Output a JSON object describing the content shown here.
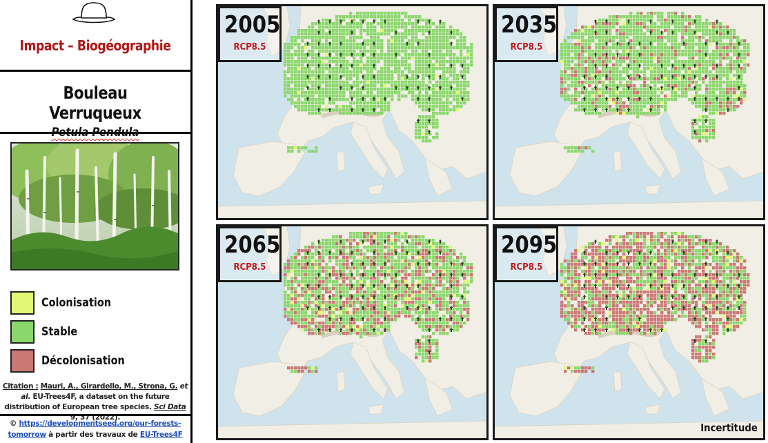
{
  "header": {
    "hat_icon": "hat-icon",
    "title": "Impact – Biogéographie"
  },
  "species": {
    "common_name": "Bouleau Verruqueux",
    "latin_name": "Petula Pendula"
  },
  "legend": [
    {
      "label": "Colonisation",
      "color": "#e2f774"
    },
    {
      "label": "Stable",
      "color": "#8ad86c"
    },
    {
      "label": "Décolonisation",
      "color": "#cc7875"
    }
  ],
  "citation": {
    "prefix": "Citation :",
    "authors": "Mauri, A., Girardello, M., Strona, G.",
    "etal": "et al.",
    "title_a": "EU-Trees4F,",
    "title_b": "a dataset on the future distribution of European tree species.",
    "journal": "Sci Data",
    "ref": "9, 37 (2022)."
  },
  "footer": {
    "copyright": "©",
    "url": "https://developmentseed.org/our-forests-tomorrow",
    "middle": "à partir des travaux de",
    "source": "EU-Trees4F"
  },
  "maps": [
    {
      "year": "2005",
      "scenario": "RCP8.5",
      "stable": 0.97,
      "decol": 0.0,
      "colon": 0.02
    },
    {
      "year": "2035",
      "scenario": "RCP8.5",
      "stable": 0.8,
      "decol": 0.17,
      "colon": 0.03
    },
    {
      "year": "2065",
      "scenario": "RCP8.5",
      "stable": 0.55,
      "decol": 0.4,
      "colon": 0.05
    },
    {
      "year": "2095",
      "scenario": "RCP8.5",
      "stable": 0.28,
      "decol": 0.66,
      "colon": 0.06
    }
  ],
  "uncertainty_label": "Incertitude",
  "colors": {
    "sea": "#cfe3ec",
    "land": "#f1eee6",
    "stable": "#8ad86c",
    "colonisation": "#e2f774",
    "decolonisation": "#cc7875",
    "accent_red": "#c11a1a"
  }
}
